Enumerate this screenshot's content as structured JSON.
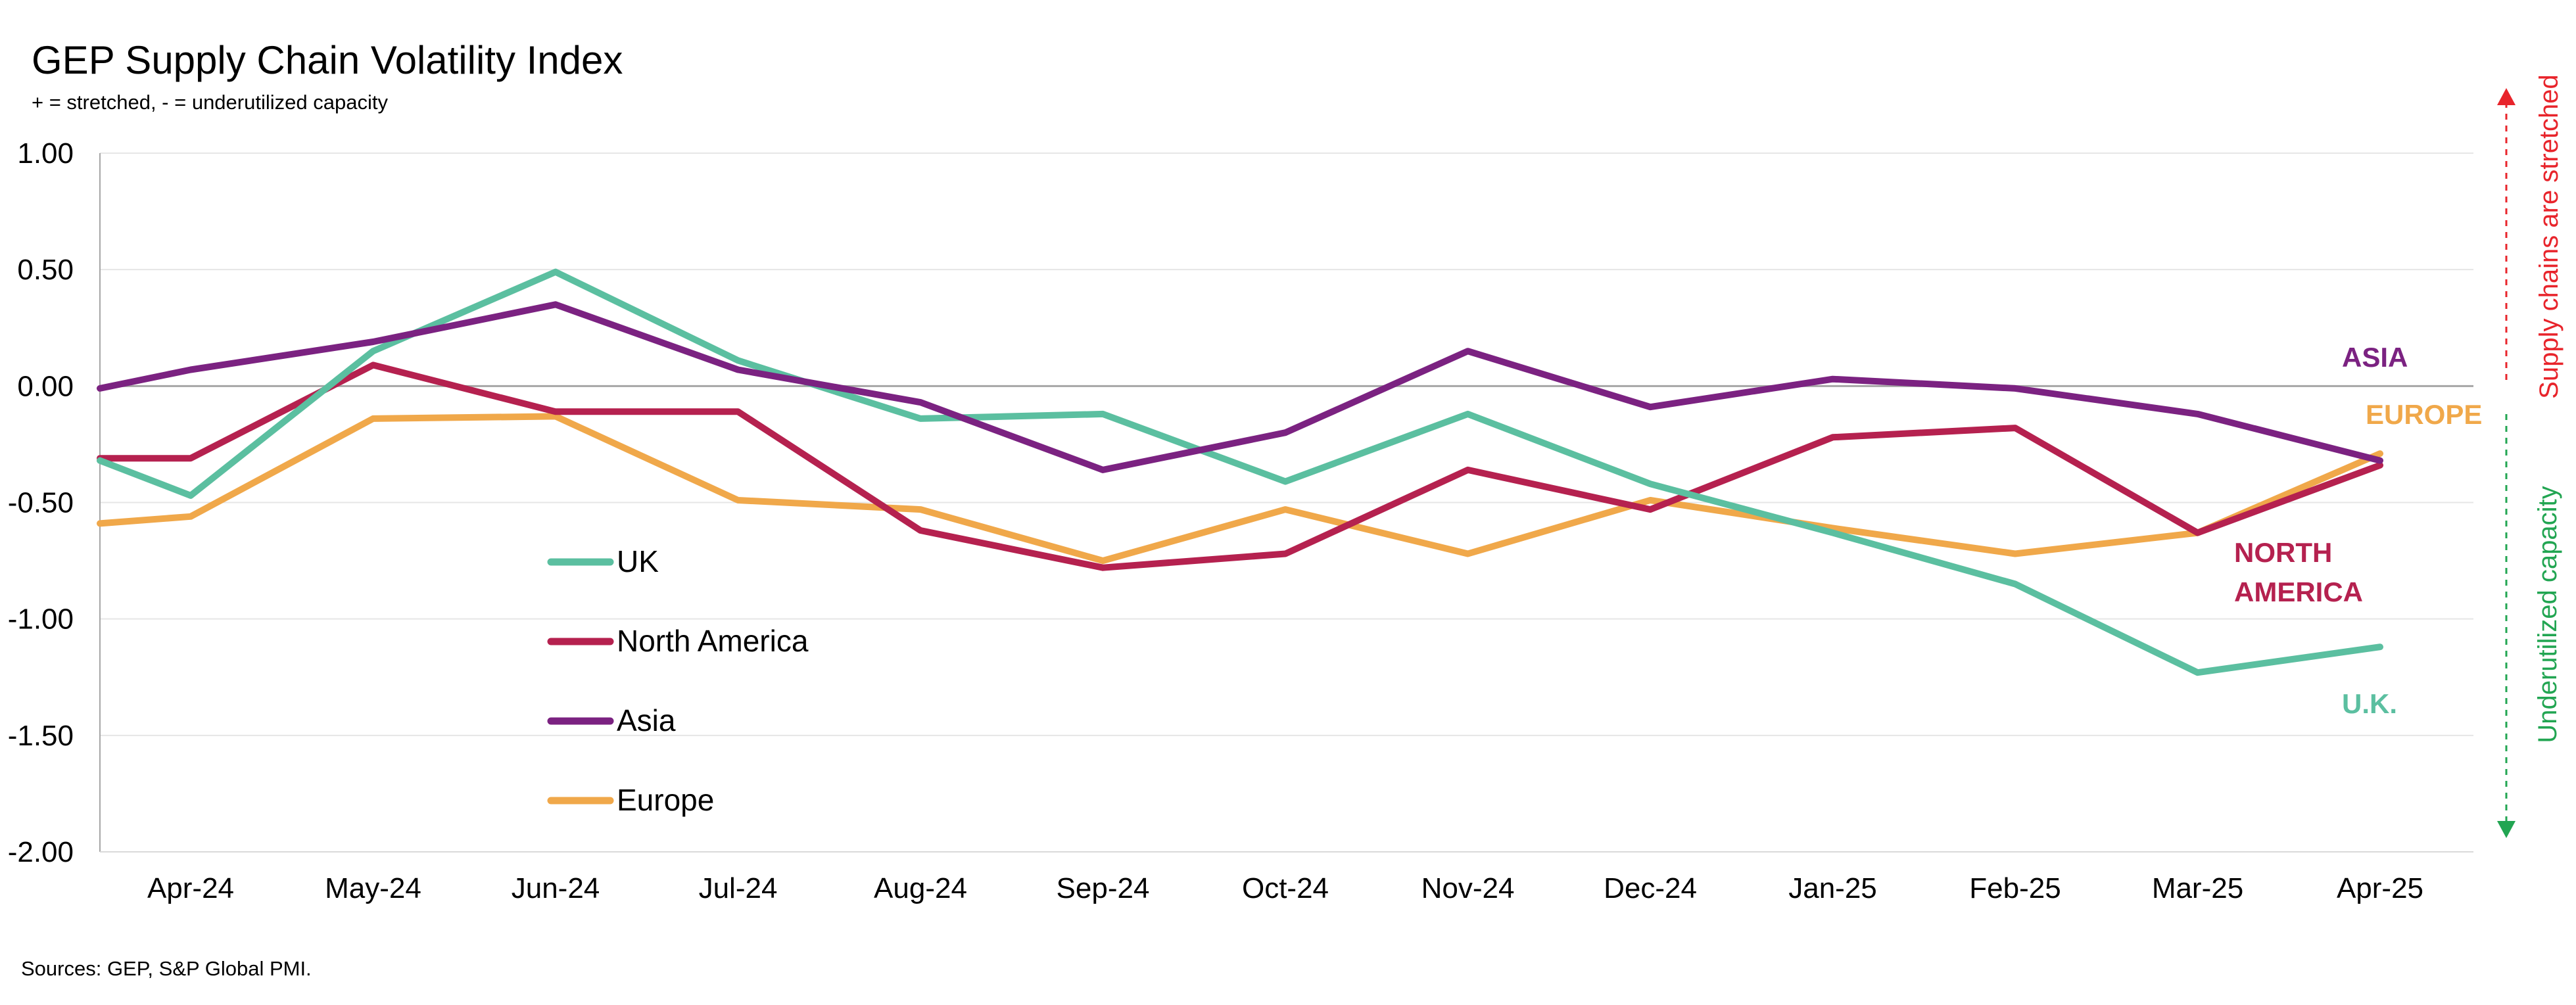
{
  "title": "GEP Supply Chain Volatility Index",
  "subtitle": "+ = stretched, - = underutilized capacity",
  "source": "Sources: GEP, S&P Global PMI.",
  "side_annotations": {
    "top": "Supply chains are stretched",
    "bottom": "Underutilized capacity",
    "top_color": "#E8242B",
    "bottom_color": "#22A552"
  },
  "chart_data": {
    "type": "line",
    "title": "GEP Supply Chain Volatility Index",
    "subtitle": "+ = stretched, - = underutilized capacity",
    "xlabel": "",
    "ylabel": "",
    "ylim": [
      -2.0,
      1.0
    ],
    "yticks": [
      "1.00",
      "0.50",
      "0.00",
      "-0.50",
      "-1.00",
      "-1.50",
      "-2.00"
    ],
    "ytick_values": [
      1.0,
      0.5,
      0.0,
      -0.5,
      -1.0,
      -1.5,
      -2.0
    ],
    "categories": [
      "Apr-24",
      "May-24",
      "Jun-24",
      "Jul-24",
      "Aug-24",
      "Sep-24",
      "Oct-24",
      "Nov-24",
      "Dec-24",
      "Jan-25",
      "Feb-25",
      "Mar-25",
      "Apr-25"
    ],
    "grid": "horizontal",
    "legend_position": "lower-left inside plot",
    "series": [
      {
        "name": "UK",
        "color": "#5BBFA0",
        "end_label": "U.K.",
        "start": -0.32,
        "values": [
          -0.47,
          0.15,
          0.49,
          0.11,
          -0.14,
          -0.12,
          -0.41,
          -0.12,
          -0.42,
          -0.63,
          -0.85,
          -1.23,
          -1.12
        ]
      },
      {
        "name": "North America",
        "color": "#B5214F",
        "end_label": "NORTH AMERICA",
        "start": -0.31,
        "values": [
          -0.31,
          0.09,
          -0.11,
          -0.11,
          -0.62,
          -0.78,
          -0.72,
          -0.36,
          -0.53,
          -0.22,
          -0.18,
          -0.63,
          -0.34
        ]
      },
      {
        "name": "Asia",
        "color": "#7B2281",
        "end_label": "ASIA",
        "start": -0.01,
        "values": [
          0.07,
          0.19,
          0.35,
          0.07,
          -0.07,
          -0.36,
          -0.2,
          0.15,
          -0.09,
          0.03,
          -0.01,
          -0.12,
          -0.32
        ]
      },
      {
        "name": "Europe",
        "color": "#F0A84A",
        "end_label": "EUROPE",
        "start": -0.59,
        "values": [
          -0.56,
          -0.14,
          -0.13,
          -0.49,
          -0.53,
          -0.75,
          -0.53,
          -0.72,
          -0.49,
          -0.61,
          -0.72,
          -0.63,
          -0.29
        ]
      }
    ]
  }
}
